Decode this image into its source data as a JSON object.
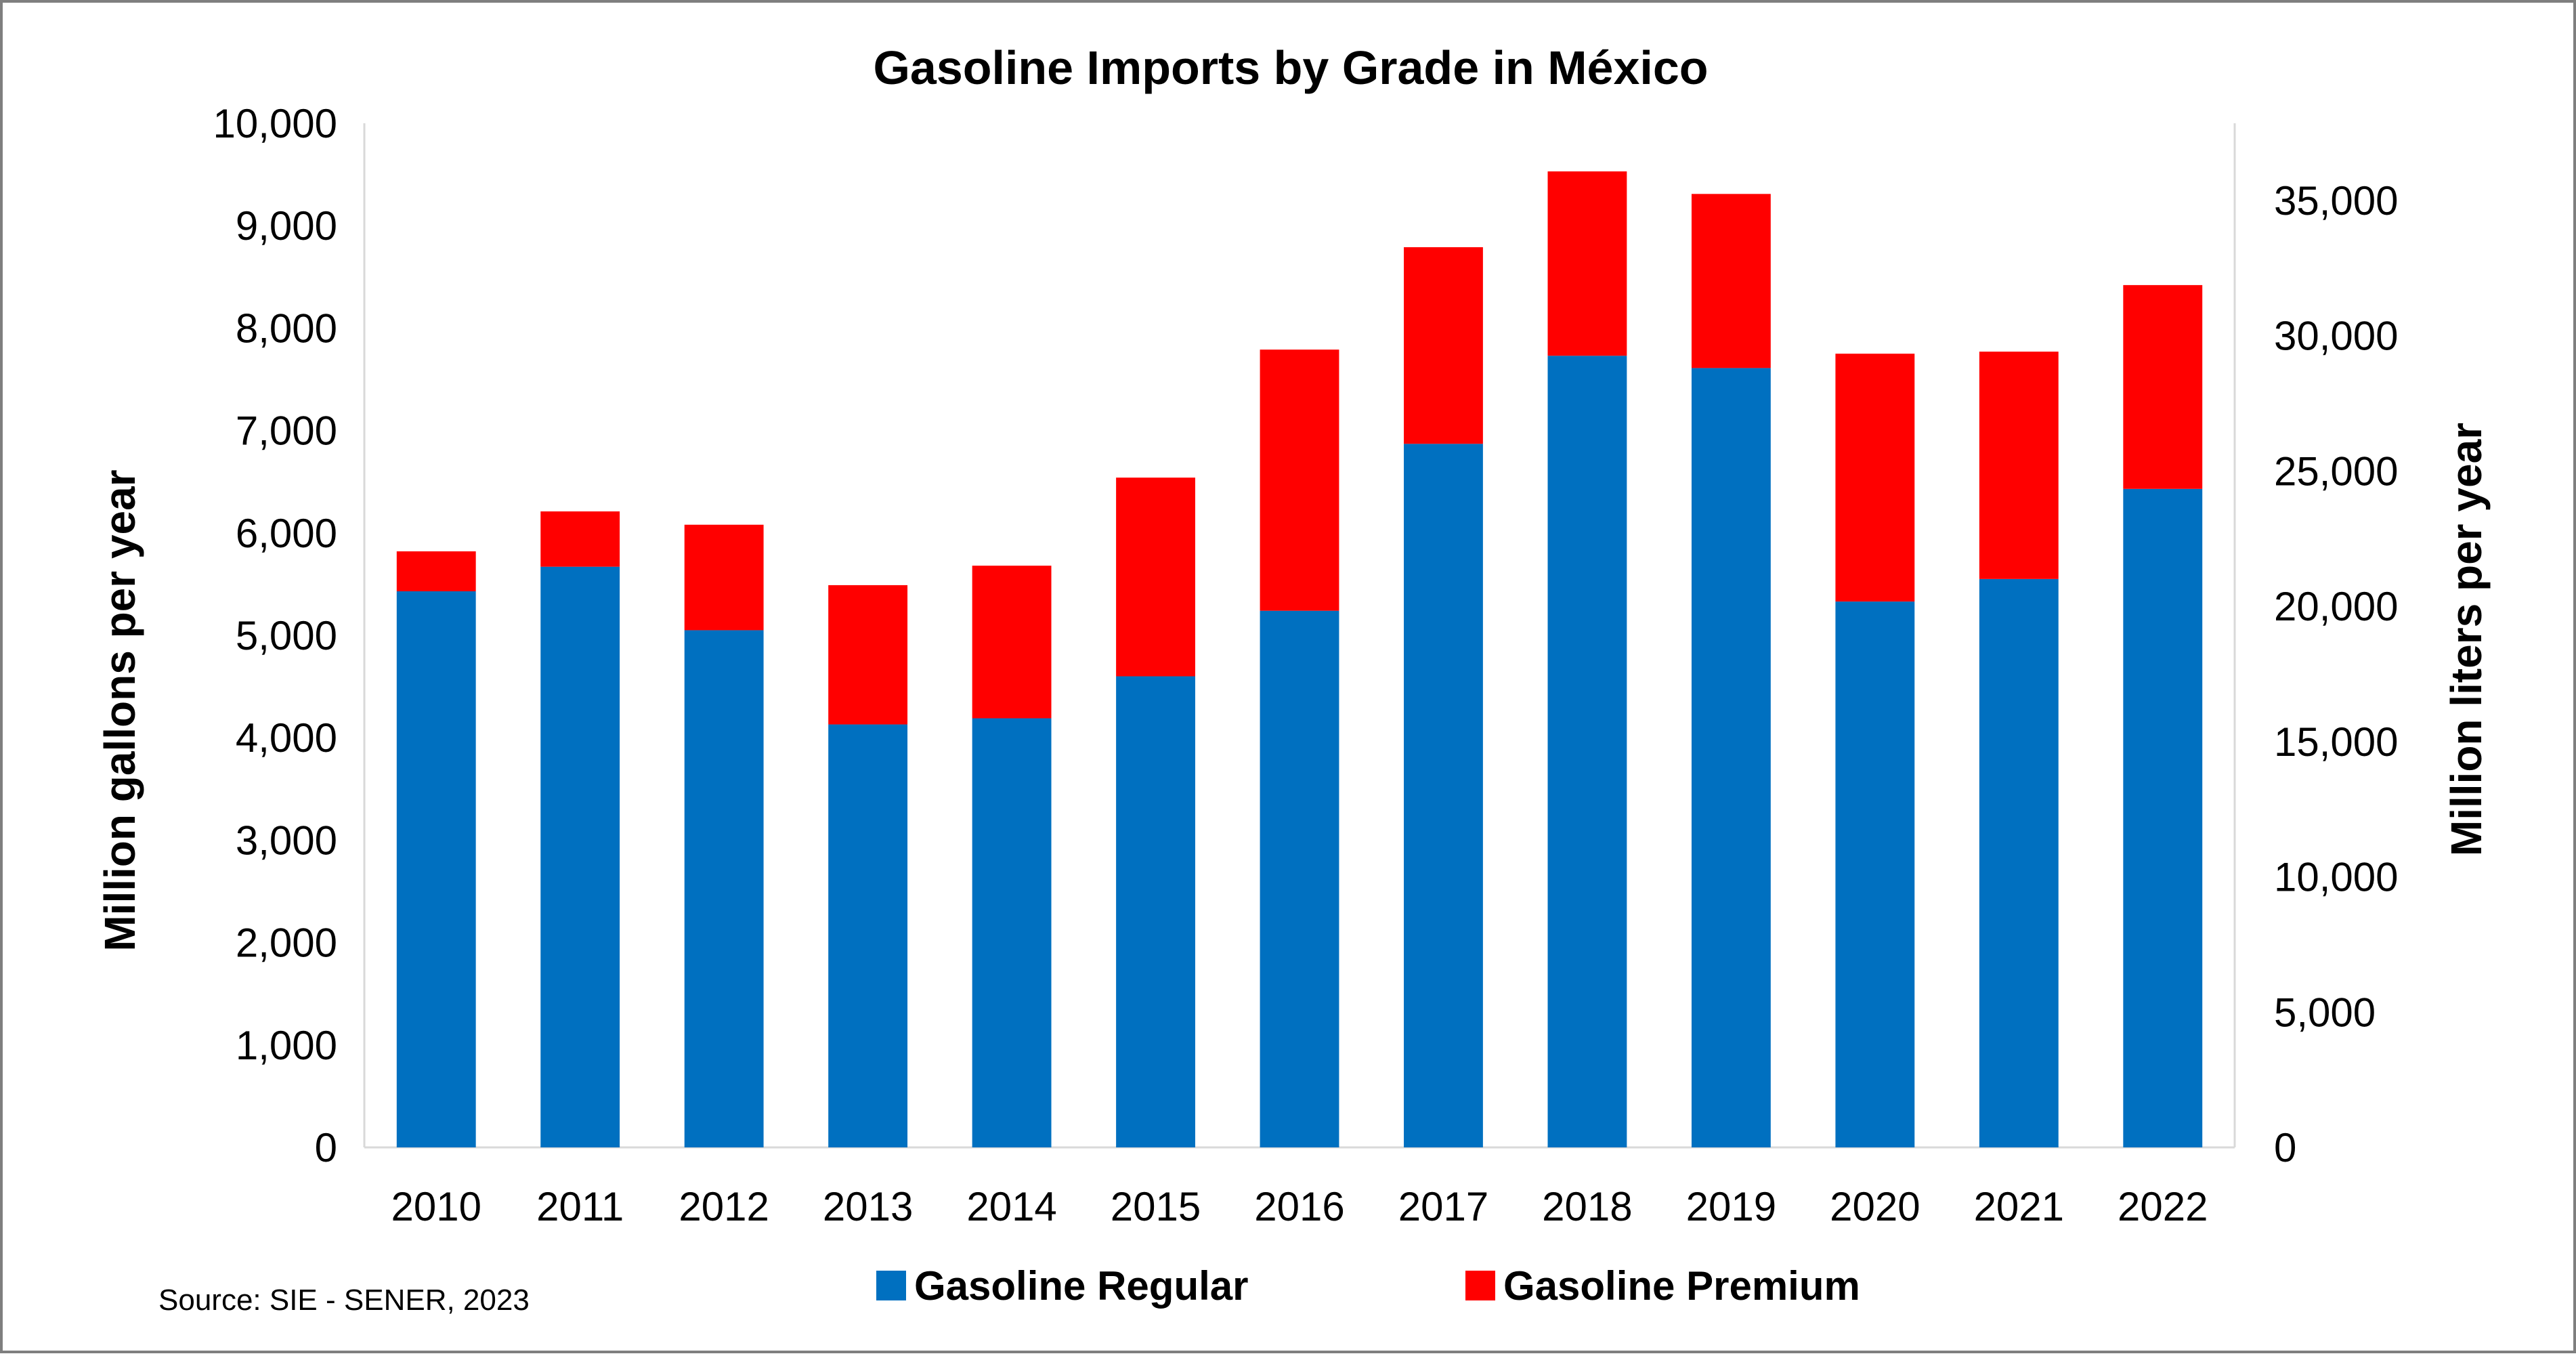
{
  "chart_data": {
    "type": "bar",
    "stacked": true,
    "title": "Gasoline Imports by Grade in México",
    "ylabel": "Million gallons per year",
    "y2label": "Million liters per year",
    "ylim": [
      0,
      10000
    ],
    "y2lim": [
      0,
      37854
    ],
    "yticks": [
      0,
      1000,
      2000,
      3000,
      4000,
      5000,
      6000,
      7000,
      8000,
      9000,
      10000
    ],
    "yticks_labels": [
      "0",
      "1,000",
      "2,000",
      "3,000",
      "4,000",
      "5,000",
      "6,000",
      "7,000",
      "8,000",
      "9,000",
      "10,000"
    ],
    "y2ticks": [
      0,
      5000,
      10000,
      15000,
      20000,
      25000,
      30000,
      35000
    ],
    "y2ticks_labels": [
      "0",
      "5,000",
      "10,000",
      "15,000",
      "20,000",
      "25,000",
      "30,000",
      "35,000"
    ],
    "categories": [
      "2010",
      "2011",
      "2012",
      "2013",
      "2014",
      "2015",
      "2016",
      "2017",
      "2018",
      "2019",
      "2020",
      "2021",
      "2022"
    ],
    "series": [
      {
        "name": "Gasoline Regular",
        "color": "#0070c0",
        "values": [
          5430,
          5670,
          5050,
          4130,
          4190,
          4600,
          5240,
          6870,
          7730,
          7610,
          5330,
          5550,
          6430
        ]
      },
      {
        "name": "Gasoline Premium",
        "color": "#ff0000",
        "values": [
          390,
          540,
          1030,
          1360,
          1490,
          1940,
          2550,
          1920,
          1800,
          1700,
          2420,
          2220,
          1990
        ]
      }
    ],
    "grid": false,
    "legend": "bottom",
    "source": "Source: SIE - SENER, 2023"
  }
}
